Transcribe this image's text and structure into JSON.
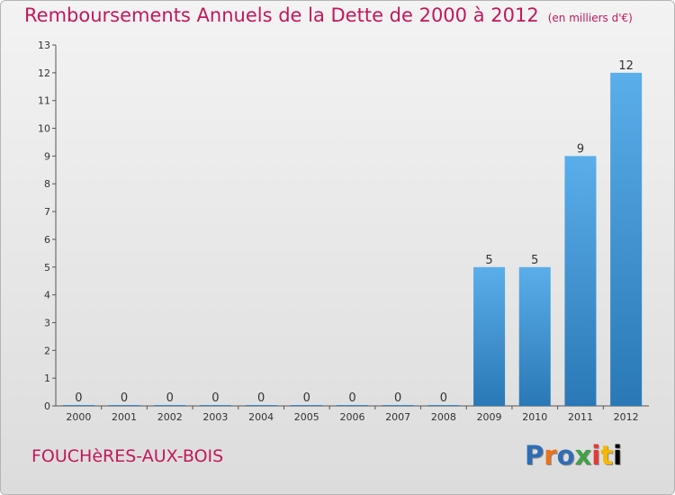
{
  "header": {
    "title": "Remboursements Annuels de la Dette de 2000 à 2012",
    "unit": "(en milliers d'€)"
  },
  "footer": {
    "place": "FOUCHèRES-AUX-BOIS",
    "brand_letters": [
      "P",
      "r",
      "o",
      "x",
      "i",
      "t",
      "i"
    ]
  },
  "colors": {
    "title": "#c2185b",
    "bar_light": "#5aaeea",
    "bar_dark": "#2a78b6"
  },
  "chart_data": {
    "type": "bar",
    "title": "Remboursements Annuels de la Dette de 2000 à 2012",
    "xlabel": "",
    "ylabel": "(en milliers d'€)",
    "categories": [
      "2000",
      "2001",
      "2002",
      "2003",
      "2004",
      "2005",
      "2006",
      "2007",
      "2008",
      "2009",
      "2010",
      "2011",
      "2012"
    ],
    "values": [
      0,
      0,
      0,
      0,
      0,
      0,
      0,
      0,
      0,
      5,
      5,
      9,
      12
    ],
    "ylim": [
      0,
      13
    ],
    "yticks": [
      "0",
      "1",
      "2",
      "3",
      "4",
      "5",
      "6",
      "7",
      "8",
      "9",
      "10",
      "11",
      "12",
      "13"
    ],
    "grid": false,
    "legend": "none"
  }
}
